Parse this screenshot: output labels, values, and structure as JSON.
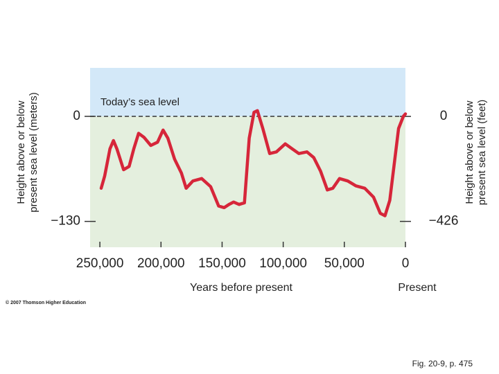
{
  "chart_data": {
    "type": "line",
    "annotation": "Today’s sea level",
    "ylabel": [
      "Height above or below",
      "present sea level (meters)"
    ],
    "y2label": [
      "Height above or below",
      "present sea level (feet)"
    ],
    "xlabel": "Years before present",
    "present_label": "Present",
    "credit": "© 2007 Thomson Higher Education",
    "caption": "Fig. 20-9, p. 475",
    "color": "#d6263a",
    "x": [
      248900,
      246100,
      241700,
      238900,
      236100,
      230600,
      226100,
      222200,
      218300,
      213900,
      208300,
      202800,
      198300,
      194400,
      188900,
      183300,
      179400,
      173900,
      166700,
      159400,
      152800,
      148300,
      144400,
      140600,
      136100,
      131700,
      127800,
      123900,
      121100,
      116700,
      111100,
      105600,
      98300,
      92800,
      87200,
      80600,
      75000,
      69400,
      63900,
      59400,
      53900,
      47200,
      40600,
      33300,
      26100,
      20600,
      16700,
      12800,
      9400,
      5600,
      1700,
      0
    ],
    "values": [
      -89,
      -74,
      -40,
      -30,
      -40,
      -66,
      -62,
      -40,
      -21,
      -26,
      -36,
      -32,
      -17,
      -27,
      -53,
      -70,
      -89,
      -80,
      -77,
      -87,
      -111,
      -113,
      -109,
      -106,
      -109,
      -107,
      -27,
      5,
      7,
      -15,
      -46,
      -44,
      -34,
      -40,
      -46,
      -44,
      -51,
      -68,
      -91,
      -89,
      -77,
      -80,
      -86,
      -89,
      -100,
      -120,
      -123,
      -104,
      -62,
      -15,
      0,
      3
    ],
    "xlim": [
      258000,
      0
    ],
    "xticks": [
      {
        "value": 250000,
        "label": "250,000"
      },
      {
        "value": 200000,
        "label": "200,000"
      },
      {
        "value": 150000,
        "label": "150,000"
      },
      {
        "value": 100000,
        "label": "100,000"
      },
      {
        "value": 50000,
        "label": "50,000"
      },
      0
    ],
    "ylim": [
      -162,
      60
    ],
    "yticks": [
      0,
      {
        "value": -130,
        "label": "−130"
      }
    ],
    "y2lim": [
      -531,
      197
    ],
    "y2ticks": [
      0,
      {
        "value": -426,
        "label": "−426"
      }
    ]
  }
}
